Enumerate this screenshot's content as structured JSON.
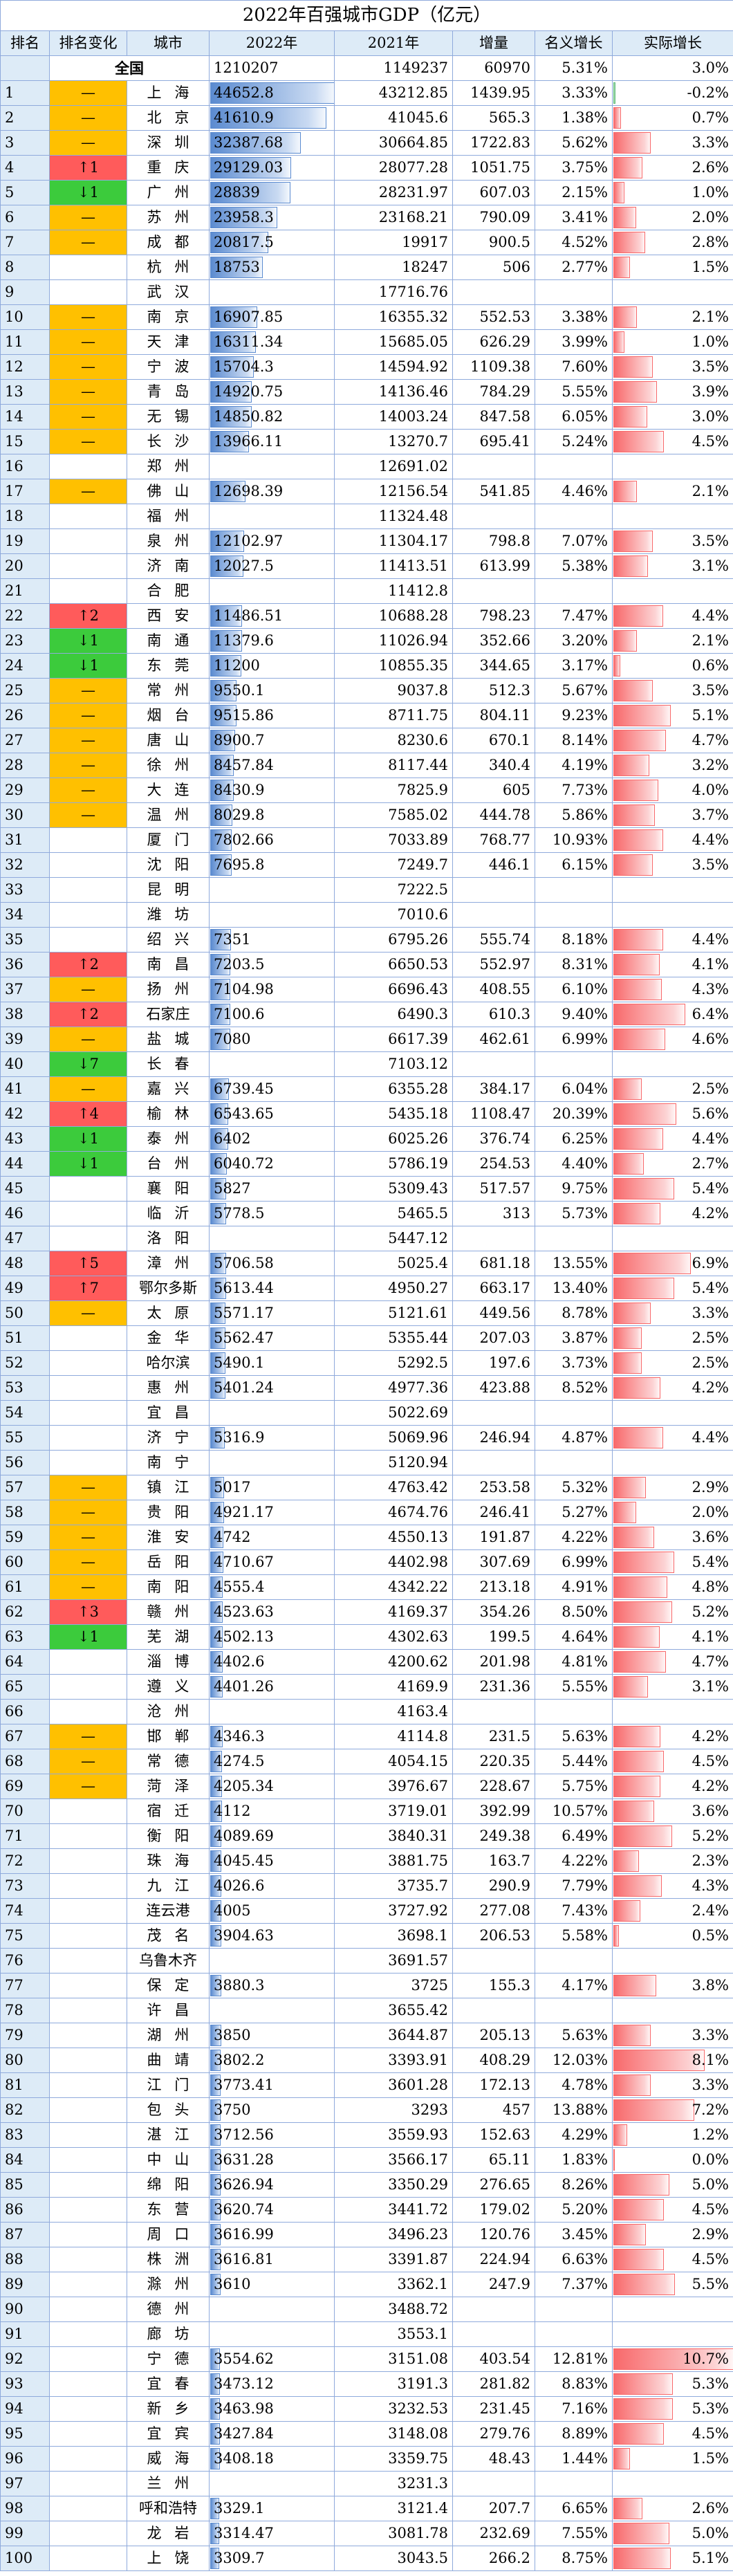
{
  "table": {
    "title": "2022年百强城市GDP（亿元）",
    "header": [
      "排名",
      "排名变化",
      "城市",
      "2022年",
      "2021年",
      "增量",
      "名义增长",
      "实际增长"
    ],
    "total": [
      "全国",
      1210207,
      1149237,
      60970,
      "5.31%",
      "3.0%"
    ],
    "rows": [
      [
        1,
        "—",
        "上海",
        44652.8,
        43212.85,
        1439.95,
        "3.33%",
        "-0.2%"
      ],
      [
        2,
        "—",
        "北京",
        41610.9,
        41045.6,
        565.3,
        "1.38%",
        "0.7%"
      ],
      [
        3,
        "—",
        "深圳",
        32387.68,
        30664.85,
        1722.83,
        "5.62%",
        "3.3%"
      ],
      [
        4,
        "↑1",
        "重庆",
        29129.03,
        28077.28,
        1051.75,
        "3.75%",
        "2.6%"
      ],
      [
        5,
        "↓1",
        "广州",
        28839,
        28231.97,
        607.03,
        "2.15%",
        "1.0%"
      ],
      [
        6,
        "—",
        "苏州",
        23958.3,
        23168.21,
        790.09,
        "3.41%",
        "2.0%"
      ],
      [
        7,
        "—",
        "成都",
        20817.5,
        19917,
        900.5,
        "4.52%",
        "2.8%"
      ],
      [
        8,
        null,
        "杭州",
        18753,
        18247,
        506,
        "2.77%",
        "1.5%"
      ],
      [
        9,
        null,
        "武汉",
        null,
        17716.76,
        null,
        null,
        null
      ],
      [
        10,
        "—",
        "南京",
        16907.85,
        16355.32,
        552.53,
        "3.38%",
        "2.1%"
      ],
      [
        11,
        "—",
        "天津",
        16311.34,
        15685.05,
        626.29,
        "3.99%",
        "1.0%"
      ],
      [
        12,
        "—",
        "宁波",
        15704.3,
        14594.92,
        1109.38,
        "7.60%",
        "3.5%"
      ],
      [
        13,
        "—",
        "青岛",
        14920.75,
        14136.46,
        784.29,
        "5.55%",
        "3.9%"
      ],
      [
        14,
        "—",
        "无锡",
        14850.82,
        14003.24,
        847.58,
        "6.05%",
        "3.0%"
      ],
      [
        15,
        "—",
        "长沙",
        13966.11,
        13270.7,
        695.41,
        "5.24%",
        "4.5%"
      ],
      [
        16,
        null,
        "郑州",
        null,
        12691.02,
        null,
        null,
        null
      ],
      [
        17,
        "—",
        "佛山",
        12698.39,
        12156.54,
        541.85,
        "4.46%",
        "2.1%"
      ],
      [
        18,
        null,
        "福州",
        null,
        11324.48,
        null,
        null,
        null
      ],
      [
        19,
        null,
        "泉州",
        12102.97,
        11304.17,
        798.8,
        "7.07%",
        "3.5%"
      ],
      [
        20,
        null,
        "济南",
        12027.5,
        11413.51,
        613.99,
        "5.38%",
        "3.1%"
      ],
      [
        21,
        null,
        "合肥",
        null,
        11412.8,
        null,
        null,
        null
      ],
      [
        22,
        "↑2",
        "西安",
        11486.51,
        10688.28,
        798.23,
        "7.47%",
        "4.4%"
      ],
      [
        23,
        "↓1",
        "南通",
        11379.6,
        11026.94,
        352.66,
        "3.20%",
        "2.1%"
      ],
      [
        24,
        "↓1",
        "东莞",
        11200,
        10855.35,
        344.65,
        "3.17%",
        "0.6%"
      ],
      [
        25,
        "—",
        "常州",
        9550.1,
        9037.8,
        512.3,
        "5.67%",
        "3.5%"
      ],
      [
        26,
        "—",
        "烟台",
        9515.86,
        8711.75,
        804.11,
        "9.23%",
        "5.1%"
      ],
      [
        27,
        "—",
        "唐山",
        8900.7,
        8230.6,
        670.1,
        "8.14%",
        "4.7%"
      ],
      [
        28,
        "—",
        "徐州",
        8457.84,
        8117.44,
        340.4,
        "4.19%",
        "3.2%"
      ],
      [
        29,
        "—",
        "大连",
        8430.9,
        7825.9,
        605,
        "7.73%",
        "4.0%"
      ],
      [
        30,
        "—",
        "温州",
        8029.8,
        7585.02,
        444.78,
        "5.86%",
        "3.7%"
      ],
      [
        31,
        null,
        "厦门",
        7802.66,
        7033.89,
        768.77,
        "10.93%",
        "4.4%"
      ],
      [
        32,
        null,
        "沈阳",
        7695.8,
        7249.7,
        446.1,
        "6.15%",
        "3.5%"
      ],
      [
        33,
        null,
        "昆明",
        null,
        7222.5,
        null,
        null,
        null
      ],
      [
        34,
        null,
        "潍坊",
        null,
        7010.6,
        null,
        null,
        null
      ],
      [
        35,
        null,
        "绍兴",
        7351,
        6795.26,
        555.74,
        "8.18%",
        "4.4%"
      ],
      [
        36,
        "↑2",
        "南昌",
        7203.5,
        6650.53,
        552.97,
        "8.31%",
        "4.1%"
      ],
      [
        37,
        "—",
        "扬州",
        7104.98,
        6696.43,
        408.55,
        "6.10%",
        "4.3%"
      ],
      [
        38,
        "↑2",
        "石家庄",
        7100.6,
        6490.3,
        610.3,
        "9.40%",
        "6.4%"
      ],
      [
        39,
        "—",
        "盐城",
        7080,
        6617.39,
        462.61,
        "6.99%",
        "4.6%"
      ],
      [
        40,
        "↓7",
        "长春",
        null,
        7103.12,
        null,
        null,
        null
      ],
      [
        41,
        "—",
        "嘉兴",
        6739.45,
        6355.28,
        384.17,
        "6.04%",
        "2.5%"
      ],
      [
        42,
        "↑4",
        "榆林",
        6543.65,
        5435.18,
        1108.47,
        "20.39%",
        "5.6%"
      ],
      [
        43,
        "↓1",
        "泰州",
        6402,
        6025.26,
        376.74,
        "6.25%",
        "4.4%"
      ],
      [
        44,
        "↓1",
        "台州",
        6040.72,
        5786.19,
        254.53,
        "4.40%",
        "2.7%"
      ],
      [
        45,
        null,
        "襄阳",
        5827,
        5309.43,
        517.57,
        "9.75%",
        "5.4%"
      ],
      [
        46,
        null,
        "临沂",
        5778.5,
        5465.5,
        313,
        "5.73%",
        "4.2%"
      ],
      [
        47,
        null,
        "洛阳",
        null,
        5447.12,
        null,
        null,
        null
      ],
      [
        48,
        "↑5",
        "漳州",
        5706.58,
        5025.4,
        681.18,
        "13.55%",
        "6.9%"
      ],
      [
        49,
        "↑7",
        "鄂尔多斯",
        5613.44,
        4950.27,
        663.17,
        "13.40%",
        "5.4%"
      ],
      [
        50,
        "—",
        "太原",
        5571.17,
        5121.61,
        449.56,
        "8.78%",
        "3.3%"
      ],
      [
        51,
        null,
        "金华",
        5562.47,
        5355.44,
        207.03,
        "3.87%",
        "2.5%"
      ],
      [
        52,
        null,
        "哈尔滨",
        5490.1,
        5292.5,
        197.6,
        "3.73%",
        "2.5%"
      ],
      [
        53,
        null,
        "惠州",
        5401.24,
        4977.36,
        423.88,
        "8.52%",
        "4.2%"
      ],
      [
        54,
        null,
        "宜昌",
        null,
        5022.69,
        null,
        null,
        null
      ],
      [
        55,
        null,
        "济宁",
        5316.9,
        5069.96,
        246.94,
        "4.87%",
        "4.4%"
      ],
      [
        56,
        null,
        "南宁",
        null,
        5120.94,
        null,
        null,
        null
      ],
      [
        57,
        "—",
        "镇江",
        5017,
        4763.42,
        253.58,
        "5.32%",
        "2.9%"
      ],
      [
        58,
        "—",
        "贵阳",
        4921.17,
        4674.76,
        246.41,
        "5.27%",
        "2.0%"
      ],
      [
        59,
        "—",
        "淮安",
        4742,
        4550.13,
        191.87,
        "4.22%",
        "3.6%"
      ],
      [
        60,
        "—",
        "岳阳",
        4710.67,
        4402.98,
        307.69,
        "6.99%",
        "5.4%"
      ],
      [
        61,
        "—",
        "南阳",
        4555.4,
        4342.22,
        213.18,
        "4.91%",
        "4.8%"
      ],
      [
        62,
        "↑3",
        "赣州",
        4523.63,
        4169.37,
        354.26,
        "8.50%",
        "5.2%"
      ],
      [
        63,
        "↓1",
        "芜湖",
        4502.13,
        4302.63,
        199.5,
        "4.64%",
        "4.1%"
      ],
      [
        64,
        null,
        "淄博",
        4402.6,
        4200.62,
        201.98,
        "4.81%",
        "4.7%"
      ],
      [
        65,
        null,
        "遵义",
        4401.26,
        4169.9,
        231.36,
        "5.55%",
        "3.1%"
      ],
      [
        66,
        null,
        "沧州",
        null,
        4163.4,
        null,
        null,
        null
      ],
      [
        67,
        "—",
        "邯郸",
        4346.3,
        4114.8,
        231.5,
        "5.63%",
        "4.2%"
      ],
      [
        68,
        "—",
        "常德",
        4274.5,
        4054.15,
        220.35,
        "5.44%",
        "4.5%"
      ],
      [
        69,
        "—",
        "菏泽",
        4205.34,
        3976.67,
        228.67,
        "5.75%",
        "4.2%"
      ],
      [
        70,
        null,
        "宿迁",
        4112,
        3719.01,
        392.99,
        "10.57%",
        "3.6%"
      ],
      [
        71,
        null,
        "衡阳",
        4089.69,
        3840.31,
        249.38,
        "6.49%",
        "5.2%"
      ],
      [
        72,
        null,
        "珠海",
        4045.45,
        3881.75,
        163.7,
        "4.22%",
        "2.3%"
      ],
      [
        73,
        null,
        "九江",
        4026.6,
        3735.7,
        290.9,
        "7.79%",
        "4.3%"
      ],
      [
        74,
        null,
        "连云港",
        4005,
        3727.92,
        277.08,
        "7.43%",
        "2.4%"
      ],
      [
        75,
        null,
        "茂名",
        3904.63,
        3698.1,
        206.53,
        "5.58%",
        "0.5%"
      ],
      [
        76,
        null,
        "乌鲁木齐",
        null,
        3691.57,
        null,
        null,
        null
      ],
      [
        77,
        null,
        "保定",
        3880.3,
        3725,
        155.3,
        "4.17%",
        "3.8%"
      ],
      [
        78,
        null,
        "许昌",
        null,
        3655.42,
        null,
        null,
        null
      ],
      [
        79,
        null,
        "湖州",
        3850,
        3644.87,
        205.13,
        "5.63%",
        "3.3%"
      ],
      [
        80,
        null,
        "曲靖",
        3802.2,
        3393.91,
        408.29,
        "12.03%",
        "8.1%"
      ],
      [
        81,
        null,
        "江门",
        3773.41,
        3601.28,
        172.13,
        "4.78%",
        "3.3%"
      ],
      [
        82,
        null,
        "包头",
        3750,
        3293,
        457,
        "13.88%",
        "7.2%"
      ],
      [
        83,
        null,
        "湛江",
        3712.56,
        3559.93,
        152.63,
        "4.29%",
        "1.2%"
      ],
      [
        84,
        null,
        "中山",
        3631.28,
        3566.17,
        65.11,
        "1.83%",
        "0.0%"
      ],
      [
        85,
        null,
        "绵阳",
        3626.94,
        3350.29,
        276.65,
        "8.26%",
        "5.0%"
      ],
      [
        86,
        null,
        "东营",
        3620.74,
        3441.72,
        179.02,
        "5.20%",
        "4.5%"
      ],
      [
        87,
        null,
        "周口",
        3616.99,
        3496.23,
        120.76,
        "3.45%",
        "2.9%"
      ],
      [
        88,
        null,
        "株洲",
        3616.81,
        3391.87,
        224.94,
        "6.63%",
        "4.5%"
      ],
      [
        89,
        null,
        "滁州",
        3610,
        3362.1,
        247.9,
        "7.37%",
        "5.5%"
      ],
      [
        90,
        null,
        "德州",
        null,
        3488.72,
        null,
        null,
        null
      ],
      [
        91,
        null,
        "廊坊",
        null,
        3553.1,
        null,
        null,
        null
      ],
      [
        92,
        null,
        "宁德",
        3554.62,
        3151.08,
        403.54,
        "12.81%",
        "10.7%"
      ],
      [
        93,
        null,
        "宜春",
        3473.12,
        3191.3,
        281.82,
        "8.83%",
        "5.3%"
      ],
      [
        94,
        null,
        "新乡",
        3463.98,
        3232.53,
        231.45,
        "7.16%",
        "5.3%"
      ],
      [
        95,
        null,
        "宜宾",
        3427.84,
        3148.08,
        279.76,
        "8.89%",
        "4.5%"
      ],
      [
        96,
        null,
        "威海",
        3408.18,
        3359.75,
        48.43,
        "1.44%",
        "1.5%"
      ],
      [
        97,
        null,
        "兰州",
        null,
        3231.3,
        null,
        null,
        null
      ],
      [
        98,
        null,
        "呼和浩特",
        3329.1,
        3121.4,
        207.7,
        "6.65%",
        "2.6%"
      ],
      [
        99,
        null,
        "龙岩",
        3314.47,
        3081.78,
        232.69,
        "7.55%",
        "5.0%"
      ],
      [
        100,
        null,
        "上饶",
        3309.7,
        3043.5,
        266.2,
        "8.75%",
        "5.1%"
      ]
    ]
  }
}
